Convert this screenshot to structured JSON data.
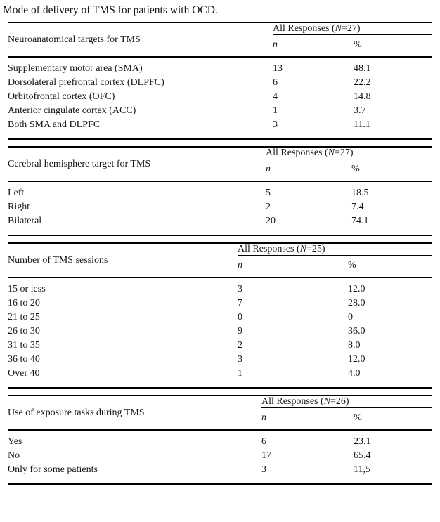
{
  "title": "Mode of delivery of TMS for patients with OCD.",
  "colors": {
    "text": "#151515",
    "rule": "#000000",
    "background": "#ffffff"
  },
  "sections": [
    {
      "label": "Neuroanatomical targets for TMS",
      "group_header": "All Responses (*N*=27)",
      "col_n": "n",
      "col_pct": "%",
      "rows": [
        {
          "label": "Supplementary motor area (SMA)",
          "n": "13",
          "pct": "48.1"
        },
        {
          "label": "Dorsolateral prefrontal cortex (DLPFC)",
          "n": "6",
          "pct": "22.2"
        },
        {
          "label": "Orbitofrontal cortex (OFC)",
          "n": "4",
          "pct": "14.8"
        },
        {
          "label": "Anterior cingulate cortex (ACC)",
          "n": "1",
          "pct": "3.7"
        },
        {
          "label": "Both SMA and DLPFC",
          "n": "3",
          "pct": "11.1"
        }
      ]
    },
    {
      "label": "Cerebral hemisphere target for TMS",
      "group_header": "All Responses (*N*=27)",
      "col_n": "n",
      "col_pct": "%",
      "rows": [
        {
          "label": "Left",
          "n": "5",
          "pct": "18.5"
        },
        {
          "label": "Right",
          "n": "2",
          "pct": "7.4"
        },
        {
          "label": "Bilateral",
          "n": "20",
          "pct": "74.1"
        }
      ]
    },
    {
      "label": "Number of TMS sessions",
      "group_header": "All Responses (*N*=25)",
      "col_n": "n",
      "col_pct": "%",
      "rows": [
        {
          "label": "15 or less",
          "n": "3",
          "pct": "12.0"
        },
        {
          "label": "16 to 20",
          "n": "7",
          "pct": "28.0"
        },
        {
          "label": "21 to 25",
          "n": "0",
          "pct": "0"
        },
        {
          "label": "26 to 30",
          "n": "9",
          "pct": "36.0"
        },
        {
          "label": "31 to 35",
          "n": "2",
          "pct": "8.0"
        },
        {
          "label": "36 to 40",
          "n": "3",
          "pct": "12.0"
        },
        {
          "label": "Over 40",
          "n": "1",
          "pct": "4.0"
        }
      ]
    },
    {
      "label": "Use of exposure tasks during TMS",
      "group_header": "All Responses (*N*=26)",
      "col_n": "n",
      "col_pct": "%",
      "rows": [
        {
          "label": "Yes",
          "n": "6",
          "pct": "23.1"
        },
        {
          "label": "No",
          "n": "17",
          "pct": "65.4"
        },
        {
          "label": "Only for some patients",
          "n": "3",
          "pct": "11,5"
        }
      ]
    }
  ]
}
